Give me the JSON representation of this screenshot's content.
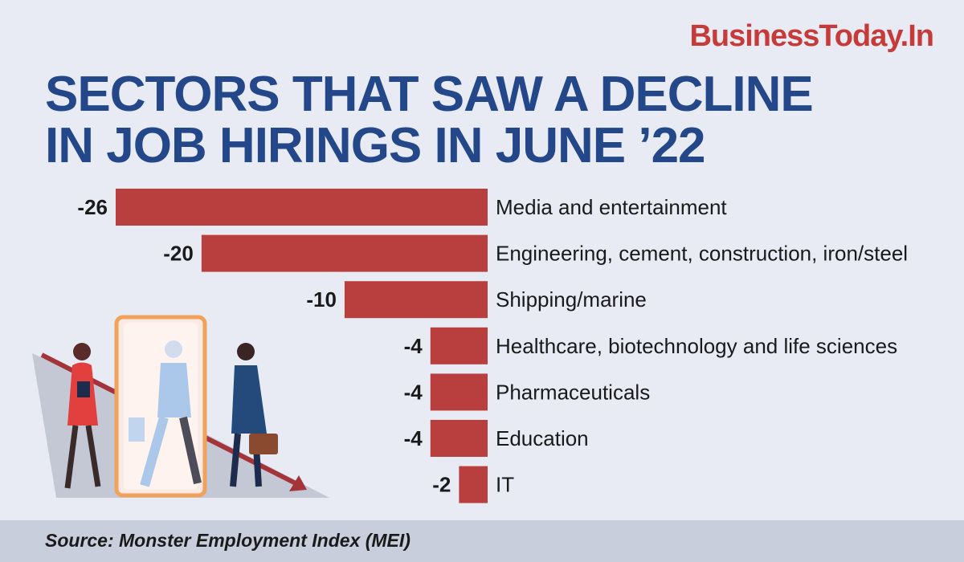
{
  "brand": {
    "name": "BusinessToday.In"
  },
  "title_lines": [
    "SECTORS THAT SAW A DECLINE",
    "IN JOB HIRINGS IN JUNE ’22"
  ],
  "source": "Source: Monster Employment Index (MEI)",
  "colors": {
    "background": "#e8ebf3",
    "title": "#24478a",
    "brand": "#c63b3a",
    "bar": "#b93f3f",
    "text": "#1a1a1a",
    "footer": "#c9cedd"
  },
  "chart_data": {
    "type": "bar",
    "orientation": "horizontal",
    "categories": [
      "Media and entertainment",
      "Engineering, cement, construction, iron/steel",
      "Shipping/marine",
      "Healthcare, biotechnology and life sciences",
      "Pharmaceuticals",
      "Education",
      "IT"
    ],
    "values": [
      -26,
      -20,
      -10,
      -4,
      -4,
      -4,
      -2
    ],
    "value_labels": [
      "-26",
      "-20",
      "-10",
      "-4",
      "-4",
      "-4",
      "-2"
    ],
    "xlim": [
      -26,
      0
    ],
    "grid": false,
    "legend": "none"
  },
  "illustration": {
    "icon": "business-people-walking-through-door-icon"
  }
}
